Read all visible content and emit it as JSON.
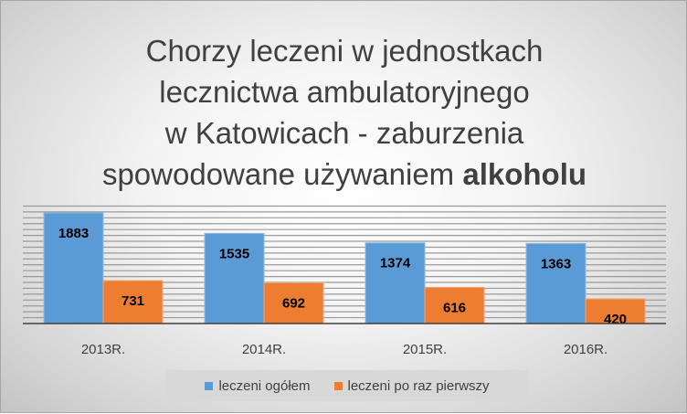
{
  "title": {
    "line1": "Chorzy leczeni w jednostkach",
    "line2": "lecznictwa ambulatoryjnego",
    "line3": "w Katowicach - zaburzenia",
    "line4_prefix": "spowodowane używaniem ",
    "line4_bold": "alkoholu"
  },
  "colors": {
    "series1": "#5b9bd5",
    "series2": "#ed7d31"
  },
  "chart_data": {
    "type": "bar",
    "categories": [
      "2013R.",
      "2014R.",
      "2015R.",
      "2016R."
    ],
    "series": [
      {
        "name": "leczeni ogółem",
        "values": [
          1883,
          1535,
          1374,
          1363
        ]
      },
      {
        "name": "leczeni po raz pierwszy",
        "values": [
          731,
          692,
          616,
          420
        ]
      }
    ],
    "title": "Chorzy leczeni w jednostkach lecznictwa ambulatoryjnego w Katowicach - zaburzenia spowodowane używaniem alkoholu",
    "ylim": [
      0,
      2000
    ],
    "grid": true,
    "legend": "bottom",
    "data_labels": true
  }
}
